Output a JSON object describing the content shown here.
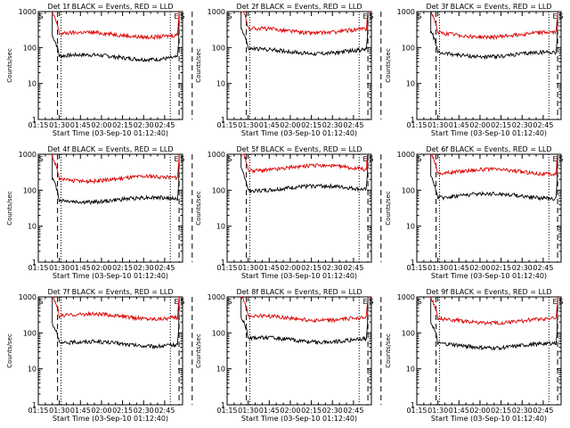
{
  "chart_data": [
    {
      "type": "line",
      "title": "Det 1f BLACK = Events, RED = LLD",
      "xlabel": "Start Time (03-Sep-10 01:12:40)",
      "ylabel": "Counts/sec",
      "ylim": [
        1,
        1000
      ],
      "yscale": "log",
      "x_ticks": [
        "01:15",
        "01:30",
        "01:45",
        "02:00",
        "02:15",
        "02:30",
        "02:45"
      ],
      "y_ticks": [
        "1",
        "10",
        "100",
        "1000"
      ],
      "xlim_min": [
        15,
        50
      ],
      "event_markers": {
        "S": [
          22,
          167
        ],
        "E": [
          161
        ]
      },
      "dashed_lines": [
        22,
        161
      ],
      "dotted_lines": [
        26,
        151
      ],
      "series": [
        {
          "name": "Events",
          "color": "#000000",
          "baseline": 55
        },
        {
          "name": "LLD",
          "color": "#dd0000",
          "baseline": 230
        }
      ]
    },
    {
      "type": "line",
      "title": "Det 2f BLACK = Events, RED = LLD",
      "xlabel": "Start Time (03-Sep-10 01:12:40)",
      "ylabel": "Counts/sec",
      "ylim": [
        1,
        1000
      ],
      "yscale": "log",
      "x_ticks": [
        "01:15",
        "01:30",
        "01:45",
        "02:00",
        "02:15",
        "02:30",
        "02:45"
      ],
      "y_ticks": [
        "1",
        "10",
        "100",
        "1000"
      ],
      "xlim_min": [
        15,
        50
      ],
      "event_markers": {
        "S": [
          22,
          167
        ],
        "E": [
          161
        ]
      },
      "dashed_lines": [
        22,
        161
      ],
      "dotted_lines": [
        26,
        151
      ],
      "series": [
        {
          "name": "Events",
          "color": "#000000",
          "baseline": 80
        },
        {
          "name": "LLD",
          "color": "#dd0000",
          "baseline": 300
        }
      ]
    },
    {
      "type": "line",
      "title": "Det 3f BLACK = Events, RED = LLD",
      "xlabel": "Start Time (03-Sep-10 01:12:40)",
      "ylabel": "Counts/sec",
      "ylim": [
        1,
        1000
      ],
      "yscale": "log",
      "x_ticks": [
        "01:15",
        "01:30",
        "01:45",
        "02:00",
        "02:15",
        "02:30",
        "02:45"
      ],
      "y_ticks": [
        "1",
        "10",
        "100",
        "1000"
      ],
      "xlim_min": [
        15,
        50
      ],
      "event_markers": {
        "S": [
          22,
          167
        ],
        "E": [
          161
        ]
      },
      "dashed_lines": [
        22,
        161
      ],
      "dotted_lines": [
        26,
        151
      ],
      "series": [
        {
          "name": "Events",
          "color": "#000000",
          "baseline": 65
        },
        {
          "name": "LLD",
          "color": "#dd0000",
          "baseline": 230
        }
      ]
    },
    {
      "type": "line",
      "title": "Det 4f BLACK = Events, RED = LLD",
      "xlabel": "Start Time (03-Sep-10 01:12:40)",
      "ylabel": "Counts/sec",
      "ylim": [
        1,
        1000
      ],
      "yscale": "log",
      "x_ticks": [
        "01:15",
        "01:30",
        "01:45",
        "02:00",
        "02:15",
        "02:30",
        "02:45"
      ],
      "y_ticks": [
        "1",
        "10",
        "100",
        "1000"
      ],
      "xlim_min": [
        15,
        50
      ],
      "event_markers": {
        "S": [
          22,
          167
        ],
        "E": [
          161
        ]
      },
      "dashed_lines": [
        22,
        161
      ],
      "dotted_lines": [
        26,
        151
      ],
      "series": [
        {
          "name": "Events",
          "color": "#000000",
          "baseline": 55
        },
        {
          "name": "LLD",
          "color": "#dd0000",
          "baseline": 210
        }
      ]
    },
    {
      "type": "line",
      "title": "Det 5f BLACK = Events, RED = LLD",
      "xlabel": "Start Time (03-Sep-10 01:12:40)",
      "ylabel": "Counts/sec",
      "ylim": [
        1,
        1000
      ],
      "yscale": "log",
      "x_ticks": [
        "01:15",
        "01:30",
        "01:45",
        "02:00",
        "02:15",
        "02:30",
        "02:45"
      ],
      "y_ticks": [
        "1",
        "10",
        "100",
        "1000"
      ],
      "xlim_min": [
        15,
        50
      ],
      "event_markers": {
        "S": [
          22,
          167
        ],
        "E": [
          161
        ]
      },
      "dashed_lines": [
        22,
        161
      ],
      "dotted_lines": [
        26,
        151
      ],
      "series": [
        {
          "name": "Events",
          "color": "#000000",
          "baseline": 115
        },
        {
          "name": "LLD",
          "color": "#dd0000",
          "baseline": 420
        }
      ]
    },
    {
      "type": "line",
      "title": "Det 6f BLACK = Events, RED = LLD",
      "xlabel": "Start Time (03-Sep-10 01:12:40)",
      "ylabel": "Counts/sec",
      "ylim": [
        1,
        1000
      ],
      "yscale": "log",
      "x_ticks": [
        "01:15",
        "01:30",
        "01:45",
        "02:00",
        "02:15",
        "02:30",
        "02:45"
      ],
      "y_ticks": [
        "1",
        "10",
        "100",
        "1000"
      ],
      "xlim_min": [
        15,
        50
      ],
      "event_markers": {
        "S": [
          22,
          167
        ],
        "E": [
          161
        ]
      },
      "dashed_lines": [
        22,
        161
      ],
      "dotted_lines": [
        26,
        151
      ],
      "series": [
        {
          "name": "Events",
          "color": "#000000",
          "baseline": 70
        },
        {
          "name": "LLD",
          "color": "#dd0000",
          "baseline": 330
        }
      ]
    },
    {
      "type": "line",
      "title": "Det 7f BLACK = Events, RED = LLD",
      "xlabel": "Start Time (03-Sep-10 01:12:40)",
      "ylabel": "Counts/sec",
      "ylim": [
        1,
        1000
      ],
      "yscale": "log",
      "x_ticks": [
        "01:15",
        "01:30",
        "01:45",
        "02:00",
        "02:15",
        "02:30",
        "02:45"
      ],
      "y_ticks": [
        "1",
        "10",
        "100",
        "1000"
      ],
      "xlim_min": [
        15,
        50
      ],
      "event_markers": {
        "S": [
          22,
          167
        ],
        "E": [
          161
        ]
      },
      "dashed_lines": [
        22,
        161
      ],
      "dotted_lines": [
        26,
        151
      ],
      "series": [
        {
          "name": "Events",
          "color": "#000000",
          "baseline": 50
        },
        {
          "name": "LLD",
          "color": "#dd0000",
          "baseline": 290
        }
      ]
    },
    {
      "type": "line",
      "title": "Det 8f BLACK = Events, RED = LLD",
      "xlabel": "Start Time (03-Sep-10 01:12:40)",
      "ylabel": "Counts/sec",
      "ylim": [
        1,
        1000
      ],
      "yscale": "log",
      "x_ticks": [
        "01:15",
        "01:30",
        "01:45",
        "02:00",
        "02:15",
        "02:30",
        "02:45"
      ],
      "y_ticks": [
        "1",
        "10",
        "100",
        "1000"
      ],
      "xlim_min": [
        15,
        50
      ],
      "event_markers": {
        "S": [
          22,
          167
        ],
        "E": [
          161
        ]
      },
      "dashed_lines": [
        22,
        161
      ],
      "dotted_lines": [
        26,
        151
      ],
      "series": [
        {
          "name": "Events",
          "color": "#000000",
          "baseline": 65
        },
        {
          "name": "LLD",
          "color": "#dd0000",
          "baseline": 260
        }
      ]
    },
    {
      "type": "line",
      "title": "Det 9f BLACK = Events, RED = LLD",
      "xlabel": "Start Time (03-Sep-10 01:12:40)",
      "ylabel": "Counts/sec",
      "ylim": [
        1,
        1000
      ],
      "yscale": "log",
      "x_ticks": [
        "01:15",
        "01:30",
        "01:45",
        "02:00",
        "02:15",
        "02:30",
        "02:45"
      ],
      "y_ticks": [
        "1",
        "10",
        "100",
        "1000"
      ],
      "xlim_min": [
        15,
        50
      ],
      "event_markers": {
        "S": [
          22,
          167
        ],
        "E": [
          161
        ]
      },
      "dashed_lines": [
        22,
        161
      ],
      "dotted_lines": [
        26,
        151
      ],
      "series": [
        {
          "name": "Events",
          "color": "#000000",
          "baseline": 45
        },
        {
          "name": "LLD",
          "color": "#dd0000",
          "baseline": 220
        }
      ]
    }
  ]
}
